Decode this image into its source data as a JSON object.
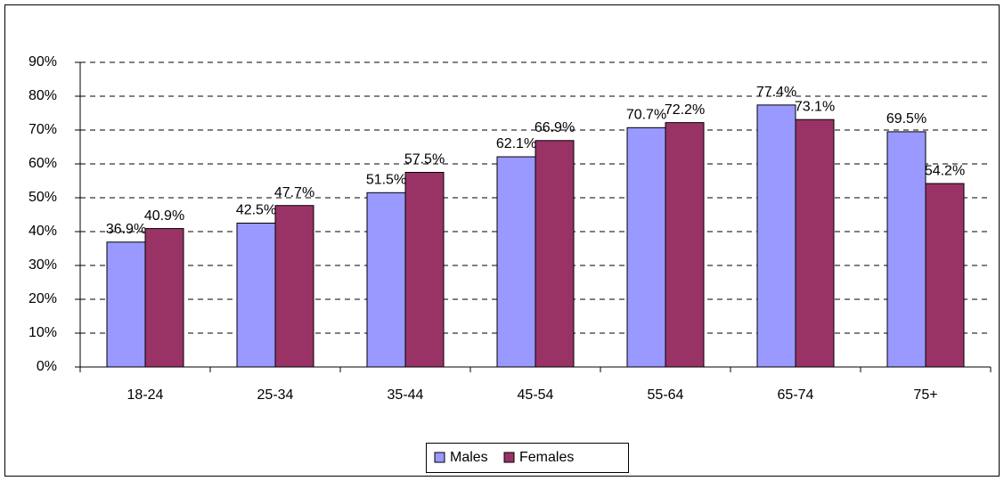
{
  "chart_data": {
    "type": "bar",
    "categories": [
      "18-24",
      "25-34",
      "35-44",
      "45-54",
      "55-64",
      "65-74",
      "75+"
    ],
    "series": [
      {
        "name": "Males",
        "color": "#9999ff",
        "values": [
          36.9,
          42.5,
          51.5,
          62.1,
          70.7,
          77.4,
          69.5
        ],
        "value_labels": [
          "36.9%",
          "42.5%",
          "51.5%",
          "62.1%",
          "70.7%",
          "77.4%",
          "69.5%"
        ]
      },
      {
        "name": "Females",
        "color": "#993366",
        "values": [
          40.9,
          47.7,
          57.5,
          66.9,
          72.2,
          73.1,
          54.2
        ],
        "value_labels": [
          "40.9%",
          "47.7%",
          "57.5%",
          "66.9%",
          "72.2%",
          "73.1%",
          "54.2%"
        ]
      }
    ],
    "ylim": [
      0,
      90
    ],
    "yticks": [
      {
        "value": 0,
        "label": "0%"
      },
      {
        "value": 10,
        "label": "10%"
      },
      {
        "value": 20,
        "label": "20%"
      },
      {
        "value": 30,
        "label": "30%"
      },
      {
        "value": 40,
        "label": "40%"
      },
      {
        "value": 50,
        "label": "50%"
      },
      {
        "value": 60,
        "label": "60%"
      },
      {
        "value": 70,
        "label": "70%"
      },
      {
        "value": 80,
        "label": "80%"
      },
      {
        "value": 90,
        "label": "90%"
      }
    ],
    "grid": true,
    "legend": "bottom"
  }
}
